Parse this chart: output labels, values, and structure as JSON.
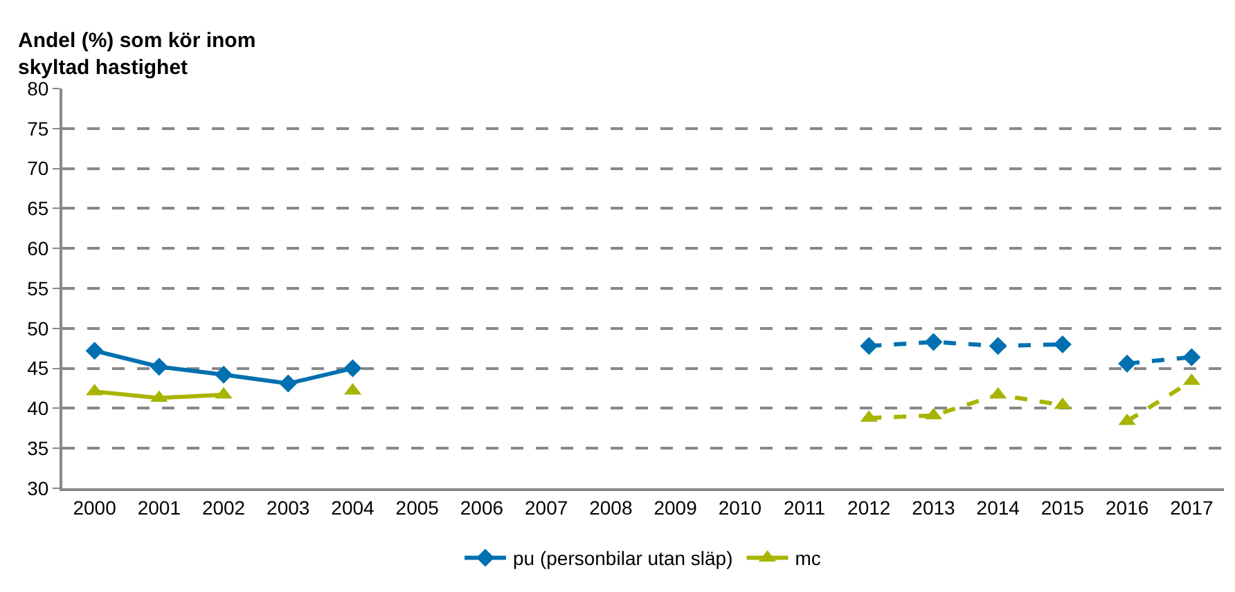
{
  "chart_data": {
    "type": "line",
    "ylabel": "Andel (%) som kör inom skyltad hastighet",
    "categories": [
      "2000",
      "2001",
      "2002",
      "2003",
      "2004",
      "2005",
      "2006",
      "2007",
      "2008",
      "2009",
      "2010",
      "2011",
      "2012",
      "2013",
      "2014",
      "2015",
      "2016",
      "2017"
    ],
    "series": [
      {
        "name": "pu (personbilar utan släp)",
        "color": "#0070b0",
        "marker": "diamond",
        "line_style": "solid",
        "values": [
          47.2,
          45.2,
          44.2,
          43.1,
          45.0,
          null,
          null,
          null,
          null,
          null,
          null,
          null,
          null,
          null,
          null,
          null,
          null,
          null
        ]
      },
      {
        "color": "#0070b0",
        "marker": "diamond",
        "line_style": "dashed",
        "values": [
          null,
          null,
          null,
          null,
          null,
          null,
          null,
          null,
          null,
          null,
          null,
          null,
          47.8,
          48.3,
          47.8,
          48.0,
          null,
          null
        ]
      },
      {
        "color": "#0070b0",
        "marker": "diamond",
        "line_style": "dashed",
        "values": [
          null,
          null,
          null,
          null,
          null,
          null,
          null,
          null,
          null,
          null,
          null,
          null,
          null,
          null,
          null,
          null,
          45.6,
          46.4
        ]
      },
      {
        "name": "mc",
        "color": "#a8b400",
        "marker": "triangle",
        "line_style": "solid",
        "values": [
          42.1,
          41.3,
          41.7,
          null,
          42.2,
          null,
          null,
          null,
          null,
          null,
          null,
          null,
          null,
          null,
          null,
          null,
          null,
          null
        ]
      },
      {
        "color": "#a8b400",
        "marker": "triangle",
        "line_style": "dashed",
        "values": [
          null,
          null,
          null,
          null,
          null,
          null,
          null,
          null,
          null,
          null,
          null,
          null,
          38.8,
          39.1,
          41.7,
          40.4,
          null,
          null
        ]
      },
      {
        "color": "#a8b400",
        "marker": "triangle",
        "line_style": "dashed",
        "values": [
          null,
          null,
          null,
          null,
          null,
          null,
          null,
          null,
          null,
          null,
          null,
          null,
          null,
          null,
          null,
          null,
          38.4,
          43.4
        ]
      }
    ],
    "ylim": [
      30,
      80
    ],
    "yticks": [
      30,
      35,
      40,
      45,
      50,
      55,
      60,
      65,
      70,
      75,
      80
    ],
    "grid": "y",
    "legend": "bottom"
  }
}
